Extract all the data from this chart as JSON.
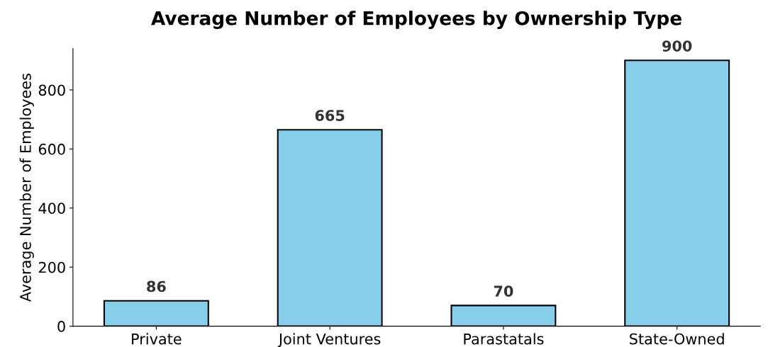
{
  "chart_data": {
    "type": "bar",
    "title": "Average Number of Employees by Ownership Type",
    "ylabel": "Average Number of Employees",
    "categories": [
      "Private",
      "Joint Ventures",
      "Parastatals",
      "State-Owned"
    ],
    "values": [
      86,
      665,
      70,
      900
    ],
    "color": "#87ceeb",
    "data_labels": true,
    "ylim": [
      0,
      940
    ],
    "yticks": [
      0,
      200,
      400,
      600,
      800
    ],
    "grid": false,
    "legend": false
  }
}
